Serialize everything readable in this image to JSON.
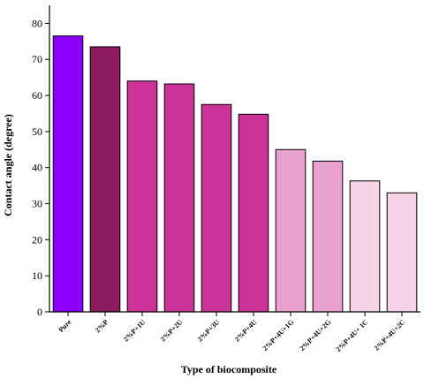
{
  "chart_data": {
    "type": "bar",
    "title": "",
    "xlabel": "Type of biocomposite",
    "ylabel": "Contact angle (degree)",
    "ylim": [
      0,
      85
    ],
    "yticks": [
      0,
      10,
      20,
      30,
      40,
      50,
      60,
      70,
      80
    ],
    "grid": false,
    "categories": [
      "Pure",
      "2%P",
      "2%P+1U",
      "2%P+2U",
      "2%P+3U",
      "2%P+4U",
      "2%P+4U+1G",
      "2%P+4U+2G",
      "2%P+4U+ 1C",
      "2%P+4U+2C"
    ],
    "values": [
      76.5,
      73.5,
      64,
      63.2,
      57.5,
      54.8,
      45,
      41.8,
      36.3,
      33
    ],
    "colors": [
      "#8b00ff",
      "#8b1a5e",
      "#cc3399",
      "#cc3399",
      "#cc3399",
      "#cc3399",
      "#e9a1cf",
      "#e9a1cf",
      "#f8d3e8",
      "#f8d3e8"
    ]
  }
}
